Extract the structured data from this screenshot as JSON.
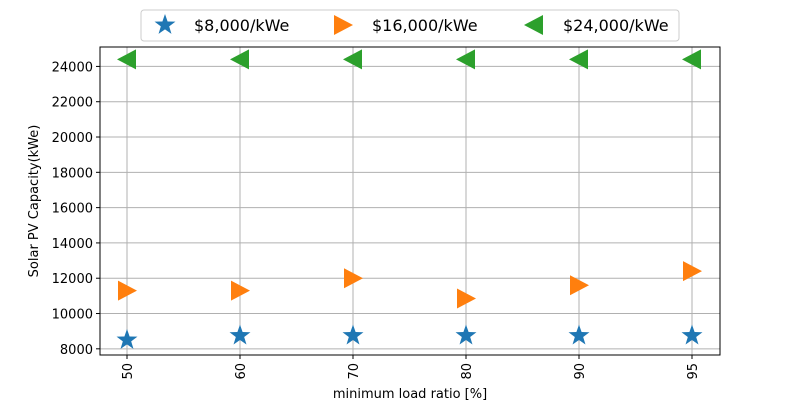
{
  "chart_data": {
    "type": "scatter",
    "title": "",
    "xlabel": "minimum load ratio [%]",
    "ylabel": "Solar PV Capacity(kWe)",
    "categories": [
      "50",
      "60",
      "70",
      "80",
      "90",
      "95"
    ],
    "ylim": [
      7650,
      25100
    ],
    "yticks": [
      8000,
      10000,
      12000,
      14000,
      16000,
      18000,
      20000,
      22000,
      24000
    ],
    "grid": true,
    "legend_position": "top-center",
    "series": [
      {
        "name": "$8,000/kWe",
        "marker": "star",
        "color": "#1f77b4",
        "values": [
          8500,
          8750,
          8750,
          8750,
          8750,
          8750
        ]
      },
      {
        "name": "$16,000/kWe",
        "marker": "triangle-right",
        "color": "#ff7f0e",
        "values": [
          11300,
          11300,
          12000,
          10850,
          11600,
          12400
        ]
      },
      {
        "name": "$24,000/kWe",
        "marker": "triangle-left",
        "color": "#2ca02c",
        "values": [
          24400,
          24400,
          24400,
          24400,
          24400,
          24400
        ]
      }
    ]
  }
}
